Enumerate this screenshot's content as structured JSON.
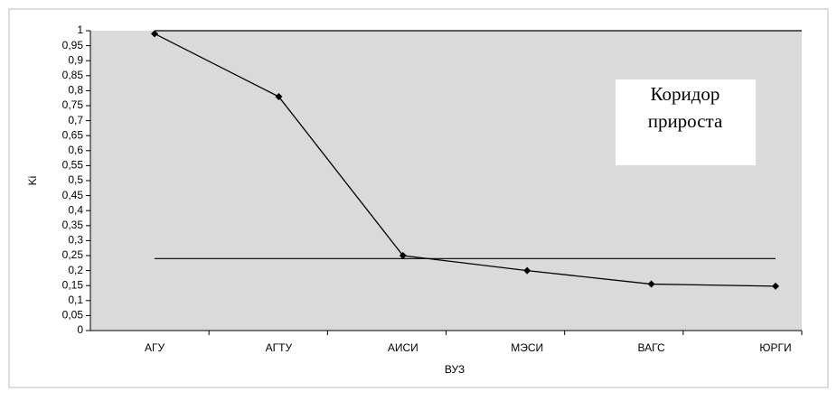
{
  "chart_data": {
    "type": "line",
    "categories": [
      "АГУ",
      "АГТУ",
      "АИСИ",
      "МЭСИ",
      "ВАГС",
      "ЮРГИ"
    ],
    "series": [
      {
        "color": "#000000",
        "values": [
          0.99,
          0.78,
          0.25,
          0.2,
          0.155,
          0.148
        ]
      }
    ],
    "reference_lines": [
      1,
      0.24
    ],
    "ylim": [
      0,
      1
    ],
    "yticks": [
      0,
      {
        "value": 0.05,
        "label": "0,05"
      },
      {
        "value": 0.1,
        "label": "0,1"
      },
      {
        "value": 0.15,
        "label": "0,15"
      },
      {
        "value": 0.2,
        "label": "0,2"
      },
      {
        "value": 0.25,
        "label": "0,25"
      },
      {
        "value": 0.3,
        "label": "0,3"
      },
      {
        "value": 0.35,
        "label": "0,35"
      },
      {
        "value": 0.4,
        "label": "0,4"
      },
      {
        "value": 0.45,
        "label": "0,45"
      },
      {
        "value": 0.5,
        "label": "0,5"
      },
      {
        "value": 0.55,
        "label": "0,55"
      },
      {
        "value": 0.6,
        "label": "0,6"
      },
      {
        "value": 0.65,
        "label": "0,65"
      },
      {
        "value": 0.7,
        "label": "0,7"
      },
      {
        "value": 0.75,
        "label": "0,75"
      },
      {
        "value": 0.8,
        "label": "0,8"
      },
      {
        "value": 0.85,
        "label": "0,85"
      },
      {
        "value": 0.9,
        "label": "0,9"
      },
      {
        "value": 0.95,
        "label": "0,95"
      },
      1
    ],
    "xlabel": "ВУЗ",
    "ylabel": "Ki",
    "annotation": [
      "Коридор",
      "прироста"
    ]
  }
}
